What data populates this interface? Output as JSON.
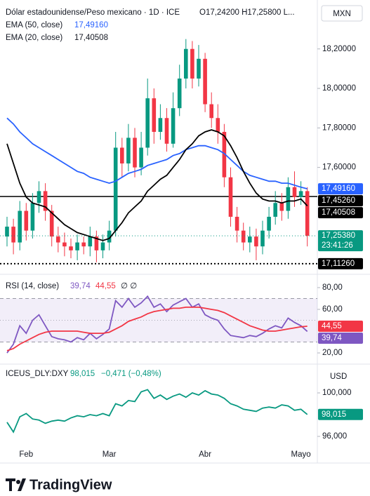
{
  "chart_data": [
    {
      "type": "candlestick",
      "title": "Dólar estadounidense/Peso mexicano · 1D · ICE",
      "ohlc": "O17,24200  H17,25800  L...",
      "unit": "MXN",
      "categories": [
        null,
        null,
        null,
        "Feb",
        null,
        null,
        null,
        null,
        null,
        null,
        null,
        null,
        null,
        null,
        null,
        null,
        "Mar",
        null,
        null,
        null,
        null,
        null,
        null,
        null,
        null,
        null,
        null,
        null,
        null,
        null,
        null,
        "Abr",
        null,
        null,
        null,
        null,
        null,
        null,
        null,
        null,
        null,
        null,
        null,
        null,
        null,
        null,
        "Mayo",
        null
      ],
      "open": [
        17.25,
        17.3,
        17.22,
        17.38,
        17.28,
        17.42,
        17.48,
        17.38,
        17.25,
        17.22,
        17.2,
        17.18,
        17.22,
        17.2,
        17.25,
        17.18,
        17.22,
        17.28,
        17.7,
        17.62,
        17.75,
        17.6,
        17.7,
        17.95,
        17.78,
        17.85,
        17.72,
        17.9,
        18.05,
        18.2,
        18.05,
        18.15,
        17.92,
        17.85,
        17.78,
        17.55,
        17.35,
        17.28,
        17.22,
        17.25,
        17.2,
        17.28,
        17.35,
        17.42,
        17.38,
        17.5,
        17.45,
        17.48
      ],
      "high": [
        17.35,
        17.34,
        17.43,
        17.42,
        17.47,
        17.53,
        17.52,
        17.41,
        17.3,
        17.27,
        17.24,
        17.26,
        17.25,
        17.3,
        17.28,
        17.26,
        17.33,
        17.78,
        17.75,
        17.82,
        17.8,
        17.78,
        18.05,
        18.0,
        17.92,
        17.9,
        17.98,
        18.12,
        18.25,
        18.24,
        18.22,
        18.18,
        17.98,
        17.92,
        17.82,
        17.6,
        17.4,
        17.32,
        17.3,
        17.29,
        17.33,
        17.4,
        17.48,
        17.47,
        17.55,
        17.58,
        17.53,
        17.5
      ],
      "low": [
        17.2,
        17.16,
        17.18,
        17.23,
        17.24,
        17.37,
        17.33,
        17.2,
        17.17,
        17.15,
        17.14,
        17.13,
        17.16,
        17.15,
        17.12,
        17.14,
        17.18,
        17.25,
        17.55,
        17.58,
        17.55,
        17.56,
        17.66,
        17.72,
        17.74,
        17.68,
        17.7,
        17.86,
        18.0,
        18.0,
        18.01,
        17.88,
        17.8,
        17.72,
        17.5,
        17.3,
        17.22,
        17.18,
        17.17,
        17.13,
        17.16,
        17.24,
        17.31,
        17.33,
        17.34,
        17.4,
        17.41,
        17.2
      ],
      "close": [
        17.3,
        17.22,
        17.38,
        17.28,
        17.42,
        17.48,
        17.38,
        17.25,
        17.22,
        17.2,
        17.18,
        17.22,
        17.2,
        17.25,
        17.18,
        17.22,
        17.28,
        17.7,
        17.62,
        17.75,
        17.6,
        17.7,
        17.95,
        17.78,
        17.85,
        17.72,
        17.9,
        18.05,
        18.2,
        18.05,
        18.15,
        17.92,
        17.85,
        17.78,
        17.55,
        17.35,
        17.28,
        17.22,
        17.25,
        17.2,
        17.28,
        17.35,
        17.42,
        17.38,
        17.5,
        17.45,
        17.48,
        17.2538
      ],
      "up_color": "#089981",
      "down_color": "#f23645",
      "close_label": "17,25380",
      "countdown": "23:41:26",
      "series": [
        {
          "name": "EMA (50, close)",
          "color": "#2962ff",
          "last_label": "17,49160",
          "values": [
            17.85,
            17.82,
            17.78,
            17.75,
            17.72,
            17.7,
            17.68,
            17.66,
            17.64,
            17.62,
            17.6,
            17.58,
            17.57,
            17.55,
            17.54,
            17.53,
            17.52,
            17.53,
            17.55,
            17.57,
            17.58,
            17.59,
            17.61,
            17.62,
            17.63,
            17.64,
            17.66,
            17.67,
            17.69,
            17.7,
            17.71,
            17.71,
            17.7,
            17.69,
            17.67,
            17.64,
            17.61,
            17.58,
            17.56,
            17.55,
            17.54,
            17.53,
            17.53,
            17.52,
            17.52,
            17.51,
            17.5,
            17.4916
          ]
        },
        {
          "name": "EMA (20, close)",
          "color": "#000000",
          "last_label": "17,40508",
          "values": [
            17.72,
            17.62,
            17.52,
            17.45,
            17.42,
            17.41,
            17.4,
            17.37,
            17.34,
            17.31,
            17.29,
            17.27,
            17.26,
            17.25,
            17.24,
            17.23,
            17.24,
            17.28,
            17.32,
            17.37,
            17.4,
            17.43,
            17.48,
            17.51,
            17.54,
            17.56,
            17.6,
            17.64,
            17.69,
            17.72,
            17.76,
            17.78,
            17.79,
            17.78,
            17.76,
            17.71,
            17.65,
            17.58,
            17.52,
            17.47,
            17.44,
            17.43,
            17.43,
            17.42,
            17.43,
            17.43,
            17.44,
            17.40508
          ]
        }
      ],
      "hlines": [
        {
          "value": 17.4526,
          "label": "17,45260",
          "style": "solid",
          "color": "#000000"
        },
        {
          "value": 17.1126,
          "label": "17,11260",
          "style": "dotted",
          "color": "#000000"
        }
      ],
      "ylim": [
        17.08,
        18.43
      ],
      "yticks": [
        {
          "value": 18.2,
          "label": "18,20000"
        },
        {
          "value": 18.0,
          "label": "18,00000"
        },
        {
          "value": 17.8,
          "label": "17,80000"
        },
        {
          "value": 17.6,
          "label": "17,60000"
        }
      ]
    },
    {
      "type": "line",
      "title": "RSI (14, close)",
      "flags": "∅ ∅",
      "band": [
        70,
        30
      ],
      "band_color": "#7e57c2",
      "midline": 50,
      "series": [
        {
          "name": "RSI",
          "color": "#7e57c2",
          "last_label": "39,74",
          "values": [
            20,
            28,
            45,
            38,
            50,
            55,
            45,
            35,
            33,
            32,
            30,
            34,
            32,
            38,
            33,
            37,
            42,
            68,
            62,
            70,
            62,
            66,
            72,
            62,
            65,
            58,
            64,
            67,
            70,
            62,
            65,
            55,
            52,
            50,
            42,
            36,
            35,
            34,
            36,
            35,
            38,
            42,
            45,
            43,
            52,
            48,
            45,
            39.74
          ]
        },
        {
          "name": "MA",
          "color": "#f23645",
          "last_label": "44,55",
          "values": [
            22,
            24,
            28,
            31,
            34,
            37,
            39,
            40,
            40,
            40,
            40,
            40,
            39,
            38,
            38,
            38,
            39,
            42,
            45,
            49,
            51,
            53,
            56,
            58,
            59,
            60,
            61,
            61,
            62,
            62,
            62,
            61,
            60,
            59,
            57,
            54,
            51,
            48,
            45,
            43,
            41,
            40,
            40,
            41,
            42,
            43,
            44,
            44.55
          ]
        }
      ],
      "ylim": [
        12.3,
        87.7
      ],
      "yticks": [
        {
          "value": 80,
          "label": "80,00"
        },
        {
          "value": 60,
          "label": "60,00"
        },
        {
          "value": 20,
          "label": "20,00"
        }
      ]
    },
    {
      "type": "line",
      "title": "ICEUS_DLY:DXY",
      "change": "−0,471 (−0,48%)",
      "unit": "USD",
      "series": [
        {
          "name": "DXY",
          "color": "#089981",
          "last_label": "98,015",
          "values": [
            97.3,
            96.4,
            97.8,
            98.1,
            97.6,
            97.5,
            97.2,
            97.4,
            97.5,
            97.4,
            97.7,
            97.9,
            97.8,
            98.0,
            97.9,
            98.1,
            97.9,
            99.0,
            98.8,
            99.3,
            99.2,
            100.1,
            100.3,
            99.5,
            99.8,
            99.4,
            99.7,
            99.9,
            99.6,
            100.0,
            99.8,
            100.2,
            99.9,
            99.8,
            99.5,
            99.0,
            98.8,
            98.5,
            98.4,
            98.3,
            98.6,
            98.7,
            98.6,
            98.9,
            98.8,
            98.4,
            98.5,
            98.015
          ]
        }
      ],
      "ylim": [
        94.84,
        102.26
      ],
      "yticks": [
        {
          "value": 100,
          "label": "100,000"
        },
        {
          "value": 96,
          "label": "96,000"
        }
      ]
    }
  ],
  "footer": {
    "brand": "TradingView"
  }
}
